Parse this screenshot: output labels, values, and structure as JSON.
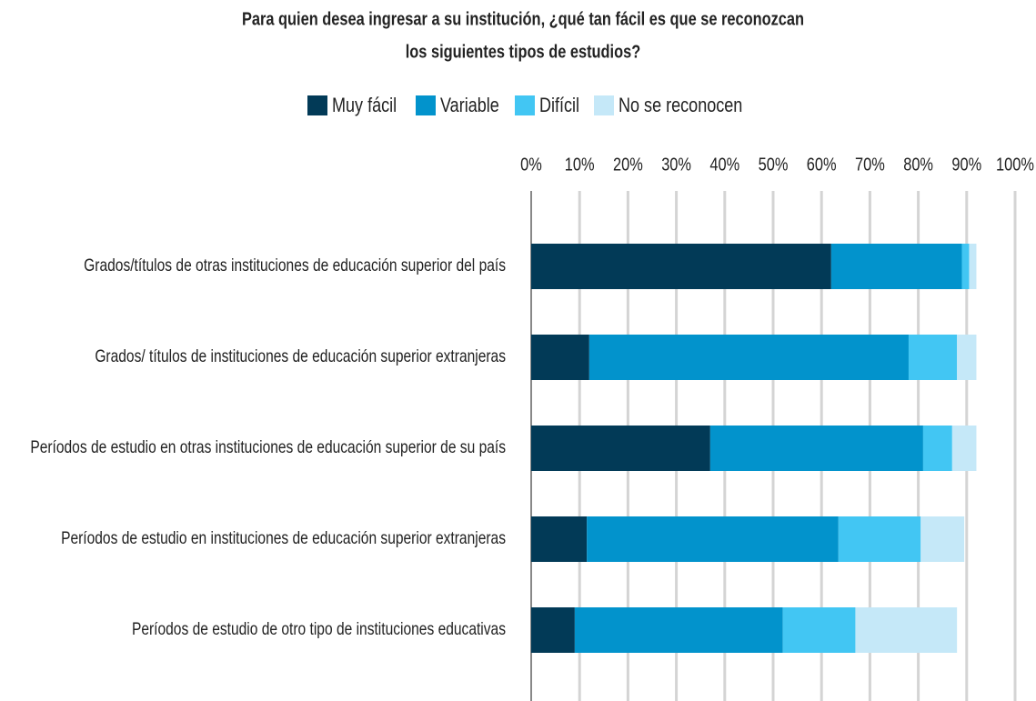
{
  "chart_data": {
    "type": "stacked_barh",
    "title": [
      "Para quien desea ingresar a su institución, ¿qué tan fácil es que se reconozcan",
      "los siguientes tipos de estudios?"
    ],
    "categories": [
      "Grados/títulos de otras instituciones de educación superior del país",
      "Grados/ títulos de instituciones de educación superior extranjeras",
      "Períodos de estudio en otras instituciones de educación superior de su país",
      "Períodos de estudio en instituciones de educación superior extranjeras",
      "Períodos de estudio de otro tipo de instituciones educativas"
    ],
    "series": [
      {
        "name": "Muy fácil",
        "color": "#023a57",
        "values": [
          62,
          12,
          37,
          11.5,
          9
        ]
      },
      {
        "name": "Variable",
        "color": "#0293cc",
        "values": [
          27,
          66,
          44,
          52,
          43
        ]
      },
      {
        "name": "Difícil",
        "color": "#42c6f3",
        "values": [
          1.5,
          10,
          6,
          17,
          15
        ]
      },
      {
        "name": "No se reconocen",
        "color": "#c5e8f8",
        "values": [
          1.5,
          4,
          5,
          9,
          21
        ]
      }
    ],
    "xlim": [
      0,
      100
    ],
    "xticks": [
      {
        "value": 0,
        "label": "0%"
      },
      {
        "value": 10,
        "label": "10%"
      },
      {
        "value": 20,
        "label": "20%"
      },
      {
        "value": 30,
        "label": "30%"
      },
      {
        "value": 40,
        "label": "40%"
      },
      {
        "value": 50,
        "label": "50%"
      },
      {
        "value": 60,
        "label": "60%"
      },
      {
        "value": 70,
        "label": "70%"
      },
      {
        "value": 80,
        "label": "80%"
      },
      {
        "value": 90,
        "label": "90%"
      },
      {
        "value": 100,
        "label": "100%"
      }
    ],
    "grid": true,
    "legend": "top"
  }
}
